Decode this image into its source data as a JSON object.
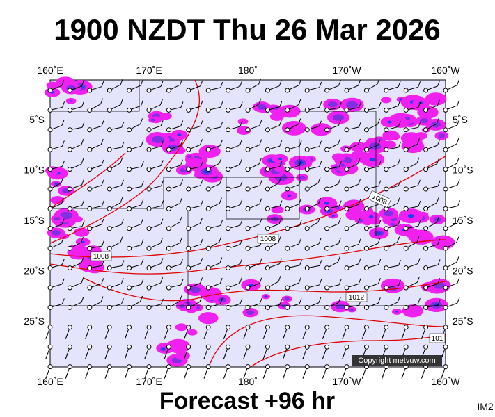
{
  "header": {
    "title": "1900 NZDT Thu 26 Mar 2026"
  },
  "map": {
    "lon_labels": [
      "160˚E",
      "170˚E",
      "180˚",
      "170˚W",
      "160˚W"
    ],
    "lat_labels": [
      "5˚S",
      "10˚S",
      "15˚S",
      "20˚S",
      "25˚S"
    ],
    "isobar_labels": [
      "1008",
      "1008",
      "1008",
      "1012",
      "101"
    ],
    "copyright": "Copyright metvuw.com"
  },
  "footer": {
    "forecast": "Forecast +96 hr",
    "code": "IM2"
  }
}
